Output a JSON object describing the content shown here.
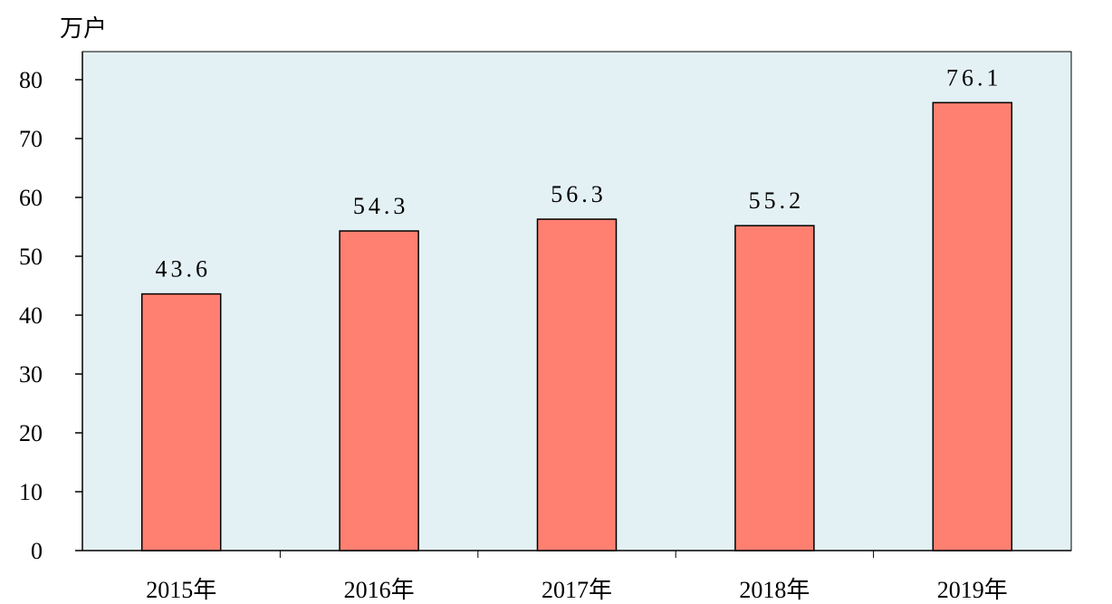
{
  "colors": {
    "plot_background": "#E4F1F4",
    "bar_fill": "#FF8070",
    "bar_stroke": "#000000",
    "axis": "#000000"
  },
  "chart_data": {
    "type": "bar",
    "categories": [
      "2015年",
      "2016年",
      "2017年",
      "2018年",
      "2019年"
    ],
    "values": [
      43.6,
      54.3,
      56.3,
      55.2,
      76.1
    ],
    "data_labels": [
      "43.6",
      "54.3",
      "56.3",
      "55.2",
      "76.1"
    ],
    "title": "",
    "xlabel": "",
    "ylabel": "万户",
    "ylim": [
      0,
      85
    ],
    "yticks": [
      0,
      10,
      20,
      30,
      40,
      50,
      60,
      70,
      80
    ],
    "grid": false,
    "legend": "none"
  }
}
